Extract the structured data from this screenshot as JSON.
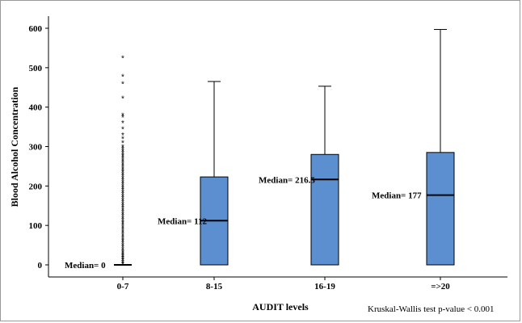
{
  "chart_data": {
    "type": "box",
    "xlabel": "AUDIT levels",
    "ylabel": "Blood Alcohol Concentration",
    "ylim": [
      0,
      600
    ],
    "yticks": [
      "0",
      "100",
      "200",
      "300",
      "400",
      "500",
      "600"
    ],
    "categories": [
      "0-7",
      "8-15",
      "16-19",
      "=>20"
    ],
    "box_color": "#5b8fcf",
    "boxes": [
      {
        "category": "0-7",
        "min": 0,
        "q1": 0,
        "median": 0,
        "q3": 0,
        "max": 0,
        "label": "Median= 0",
        "outliers": [
          2,
          5,
          8,
          12,
          15,
          18,
          22,
          25,
          28,
          32,
          35,
          40,
          45,
          50,
          55,
          60,
          65,
          70,
          75,
          80,
          85,
          90,
          95,
          100,
          105,
          110,
          115,
          120,
          125,
          130,
          135,
          140,
          145,
          150,
          155,
          160,
          165,
          170,
          175,
          180,
          185,
          190,
          195,
          200,
          205,
          210,
          215,
          220,
          225,
          230,
          235,
          240,
          245,
          250,
          255,
          260,
          265,
          270,
          275,
          280,
          285,
          290,
          295,
          300,
          310,
          320,
          330,
          345,
          360,
          375,
          380,
          423,
          460,
          478,
          525
        ]
      },
      {
        "category": "8-15",
        "min": 0,
        "q1": 0,
        "median": 112,
        "q3": 223,
        "max": 465,
        "label": "Median= 112",
        "outliers": []
      },
      {
        "category": "16-19",
        "min": 0,
        "q1": 0,
        "median": 216.5,
        "q3": 280,
        "max": 453,
        "label": "Median= 216.5",
        "outliers": []
      },
      {
        "category": "=>20",
        "min": 0,
        "q1": 0,
        "median": 177,
        "q3": 285,
        "max": 597,
        "label": "Median= 177",
        "outliers": []
      }
    ],
    "annotation": "Kruskal-Wallis test p-value < 0.001"
  }
}
